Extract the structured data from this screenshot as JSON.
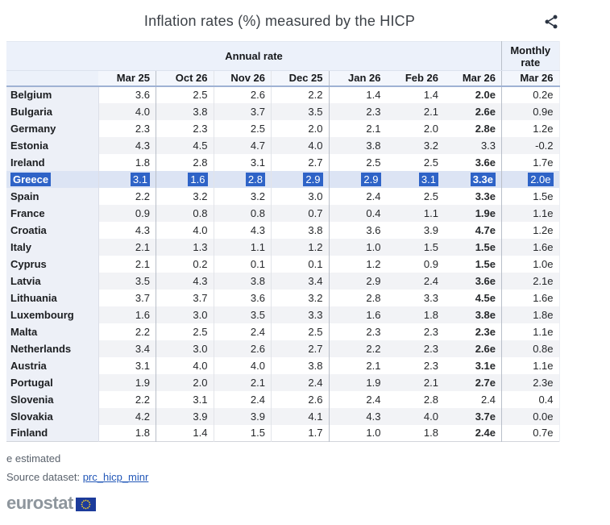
{
  "title": "Inflation rates (%) measured by the HICP",
  "colors": {
    "selection": "#2e63c7",
    "selected-row": "#dce4f4",
    "link": "#2257b8",
    "logo-gray": "#8e969d",
    "flag-blue": "#1c3b9b",
    "star-yellow": "#ffd520",
    "icon-dark": "#2b3442"
  },
  "table": {
    "group_headers": {
      "annual": "Annual rate",
      "monthly": "Monthly rate"
    },
    "columns": [
      "Mar 25",
      "Oct 26",
      "Nov 26",
      "Dec 25",
      "Jan 26",
      "Feb 26",
      "Mar 26"
    ],
    "monthly_column": "Mar 26",
    "rows": [
      {
        "country": "Belgium",
        "values": [
          "3.6",
          "2.5",
          "2.6",
          "2.2",
          "1.4",
          "1.4",
          "2.0e"
        ],
        "monthly": "0.2e",
        "selected": false
      },
      {
        "country": "Bulgaria",
        "values": [
          "4.0",
          "3.8",
          "3.7",
          "3.5",
          "2.3",
          "2.1",
          "2.6e"
        ],
        "monthly": "0.9e",
        "selected": false
      },
      {
        "country": "Germany",
        "values": [
          "2.3",
          "2.3",
          "2.5",
          "2.0",
          "2.1",
          "2.0",
          "2.8e"
        ],
        "monthly": "1.2e",
        "selected": false
      },
      {
        "country": "Estonia",
        "values": [
          "4.3",
          "4.5",
          "4.7",
          "4.0",
          "3.8",
          "3.2",
          "3.3"
        ],
        "monthly": "-0.2",
        "selected": false
      },
      {
        "country": "Ireland",
        "values": [
          "1.8",
          "2.8",
          "3.1",
          "2.7",
          "2.5",
          "2.5",
          "3.6e"
        ],
        "monthly": "1.7e",
        "selected": false
      },
      {
        "country": "Greece",
        "values": [
          "3.1",
          "1.6",
          "2.8",
          "2.9",
          "2.9",
          "3.1",
          "3.3e"
        ],
        "monthly": "2.0e",
        "selected": true
      },
      {
        "country": "Spain",
        "values": [
          "2.2",
          "3.2",
          "3.2",
          "3.0",
          "2.4",
          "2.5",
          "3.3e"
        ],
        "monthly": "1.5e",
        "selected": false
      },
      {
        "country": "France",
        "values": [
          "0.9",
          "0.8",
          "0.8",
          "0.7",
          "0.4",
          "1.1",
          "1.9e"
        ],
        "monthly": "1.1e",
        "selected": false
      },
      {
        "country": "Croatia",
        "values": [
          "4.3",
          "4.0",
          "4.3",
          "3.8",
          "3.6",
          "3.9",
          "4.7e"
        ],
        "monthly": "1.2e",
        "selected": false
      },
      {
        "country": "Italy",
        "values": [
          "2.1",
          "1.3",
          "1.1",
          "1.2",
          "1.0",
          "1.5",
          "1.5e"
        ],
        "monthly": "1.6e",
        "selected": false
      },
      {
        "country": "Cyprus",
        "values": [
          "2.1",
          "0.2",
          "0.1",
          "0.1",
          "1.2",
          "0.9",
          "1.5e"
        ],
        "monthly": "1.0e",
        "selected": false
      },
      {
        "country": "Latvia",
        "values": [
          "3.5",
          "4.3",
          "3.8",
          "3.4",
          "2.9",
          "2.4",
          "3.6e"
        ],
        "monthly": "2.1e",
        "selected": false
      },
      {
        "country": "Lithuania",
        "values": [
          "3.7",
          "3.7",
          "3.6",
          "3.2",
          "2.8",
          "3.3",
          "4.5e"
        ],
        "monthly": "1.6e",
        "selected": false
      },
      {
        "country": "Luxembourg",
        "values": [
          "1.6",
          "3.0",
          "3.5",
          "3.3",
          "1.6",
          "1.8",
          "3.8e"
        ],
        "monthly": "1.8e",
        "selected": false
      },
      {
        "country": "Malta",
        "values": [
          "2.2",
          "2.5",
          "2.4",
          "2.5",
          "2.3",
          "2.3",
          "2.3e"
        ],
        "monthly": "1.1e",
        "selected": false
      },
      {
        "country": "Netherlands",
        "values": [
          "3.4",
          "3.0",
          "2.6",
          "2.7",
          "2.2",
          "2.3",
          "2.6e"
        ],
        "monthly": "0.8e",
        "selected": false
      },
      {
        "country": "Austria",
        "values": [
          "3.1",
          "4.0",
          "4.0",
          "3.8",
          "2.1",
          "2.3",
          "3.1e"
        ],
        "monthly": "1.1e",
        "selected": false
      },
      {
        "country": "Portugal",
        "values": [
          "1.9",
          "2.0",
          "2.1",
          "2.4",
          "1.9",
          "2.1",
          "2.7e"
        ],
        "monthly": "2.3e",
        "selected": false
      },
      {
        "country": "Slovenia",
        "values": [
          "2.2",
          "3.1",
          "2.4",
          "2.6",
          "2.4",
          "2.8",
          "2.4"
        ],
        "monthly": "0.4",
        "selected": false
      },
      {
        "country": "Slovakia",
        "values": [
          "4.2",
          "3.9",
          "3.9",
          "4.1",
          "4.3",
          "4.0",
          "3.7e"
        ],
        "monthly": "0.0e",
        "selected": false
      },
      {
        "country": "Finland",
        "values": [
          "1.8",
          "1.4",
          "1.5",
          "1.7",
          "1.0",
          "1.8",
          "2.4e"
        ],
        "monthly": "0.7e",
        "selected": false
      }
    ]
  },
  "footer": {
    "estimated_note": "e estimated",
    "source_label": "Source dataset:",
    "source_link": "prc_hicp_minr",
    "logo_text": "eurostat"
  }
}
